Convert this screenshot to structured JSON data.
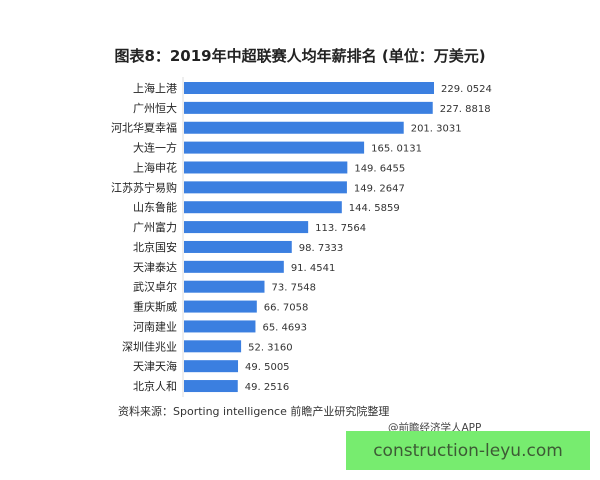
{
  "chart_data": {
    "type": "bar",
    "orientation": "horizontal",
    "title": "图表8：2019年中超联赛人均年薪排名 (单位：万美元)",
    "categories": [
      "上海上港",
      "广州恒大",
      "河北华夏幸福",
      "大连一方",
      "上海申花",
      "江苏苏宁易购",
      "山东鲁能",
      "广州富力",
      "北京国安",
      "天津泰达",
      "武汉卓尔",
      "重庆斯威",
      "河南建业",
      "深圳佳兆业",
      "天津天海",
      "北京人和"
    ],
    "values": [
      229.0524,
      227.8818,
      201.3031,
      165.0131,
      149.6455,
      149.2647,
      144.5859,
      113.7564,
      98.7333,
      91.4541,
      73.7548,
      66.7058,
      65.4693,
      52.316,
      49.5005,
      49.2516
    ],
    "value_labels": [
      "229. 0524",
      "227. 8818",
      "201. 3031",
      "165. 0131",
      "149. 6455",
      "149. 2647",
      "144. 5859",
      "113. 7564",
      "98. 7333",
      "91. 4541",
      "73. 7548",
      "66. 7058",
      "65. 4693",
      "52. 3160",
      "49. 5005",
      "49. 2516"
    ],
    "bar_color": "#3b7fe0",
    "grid": false,
    "xlim": [
      0,
      230
    ]
  },
  "source": "资料来源：Sporting intelligence 前瞻产业研究院整理",
  "credit": "@前瞻经济学人APP",
  "banner": "construction-leyu.com"
}
